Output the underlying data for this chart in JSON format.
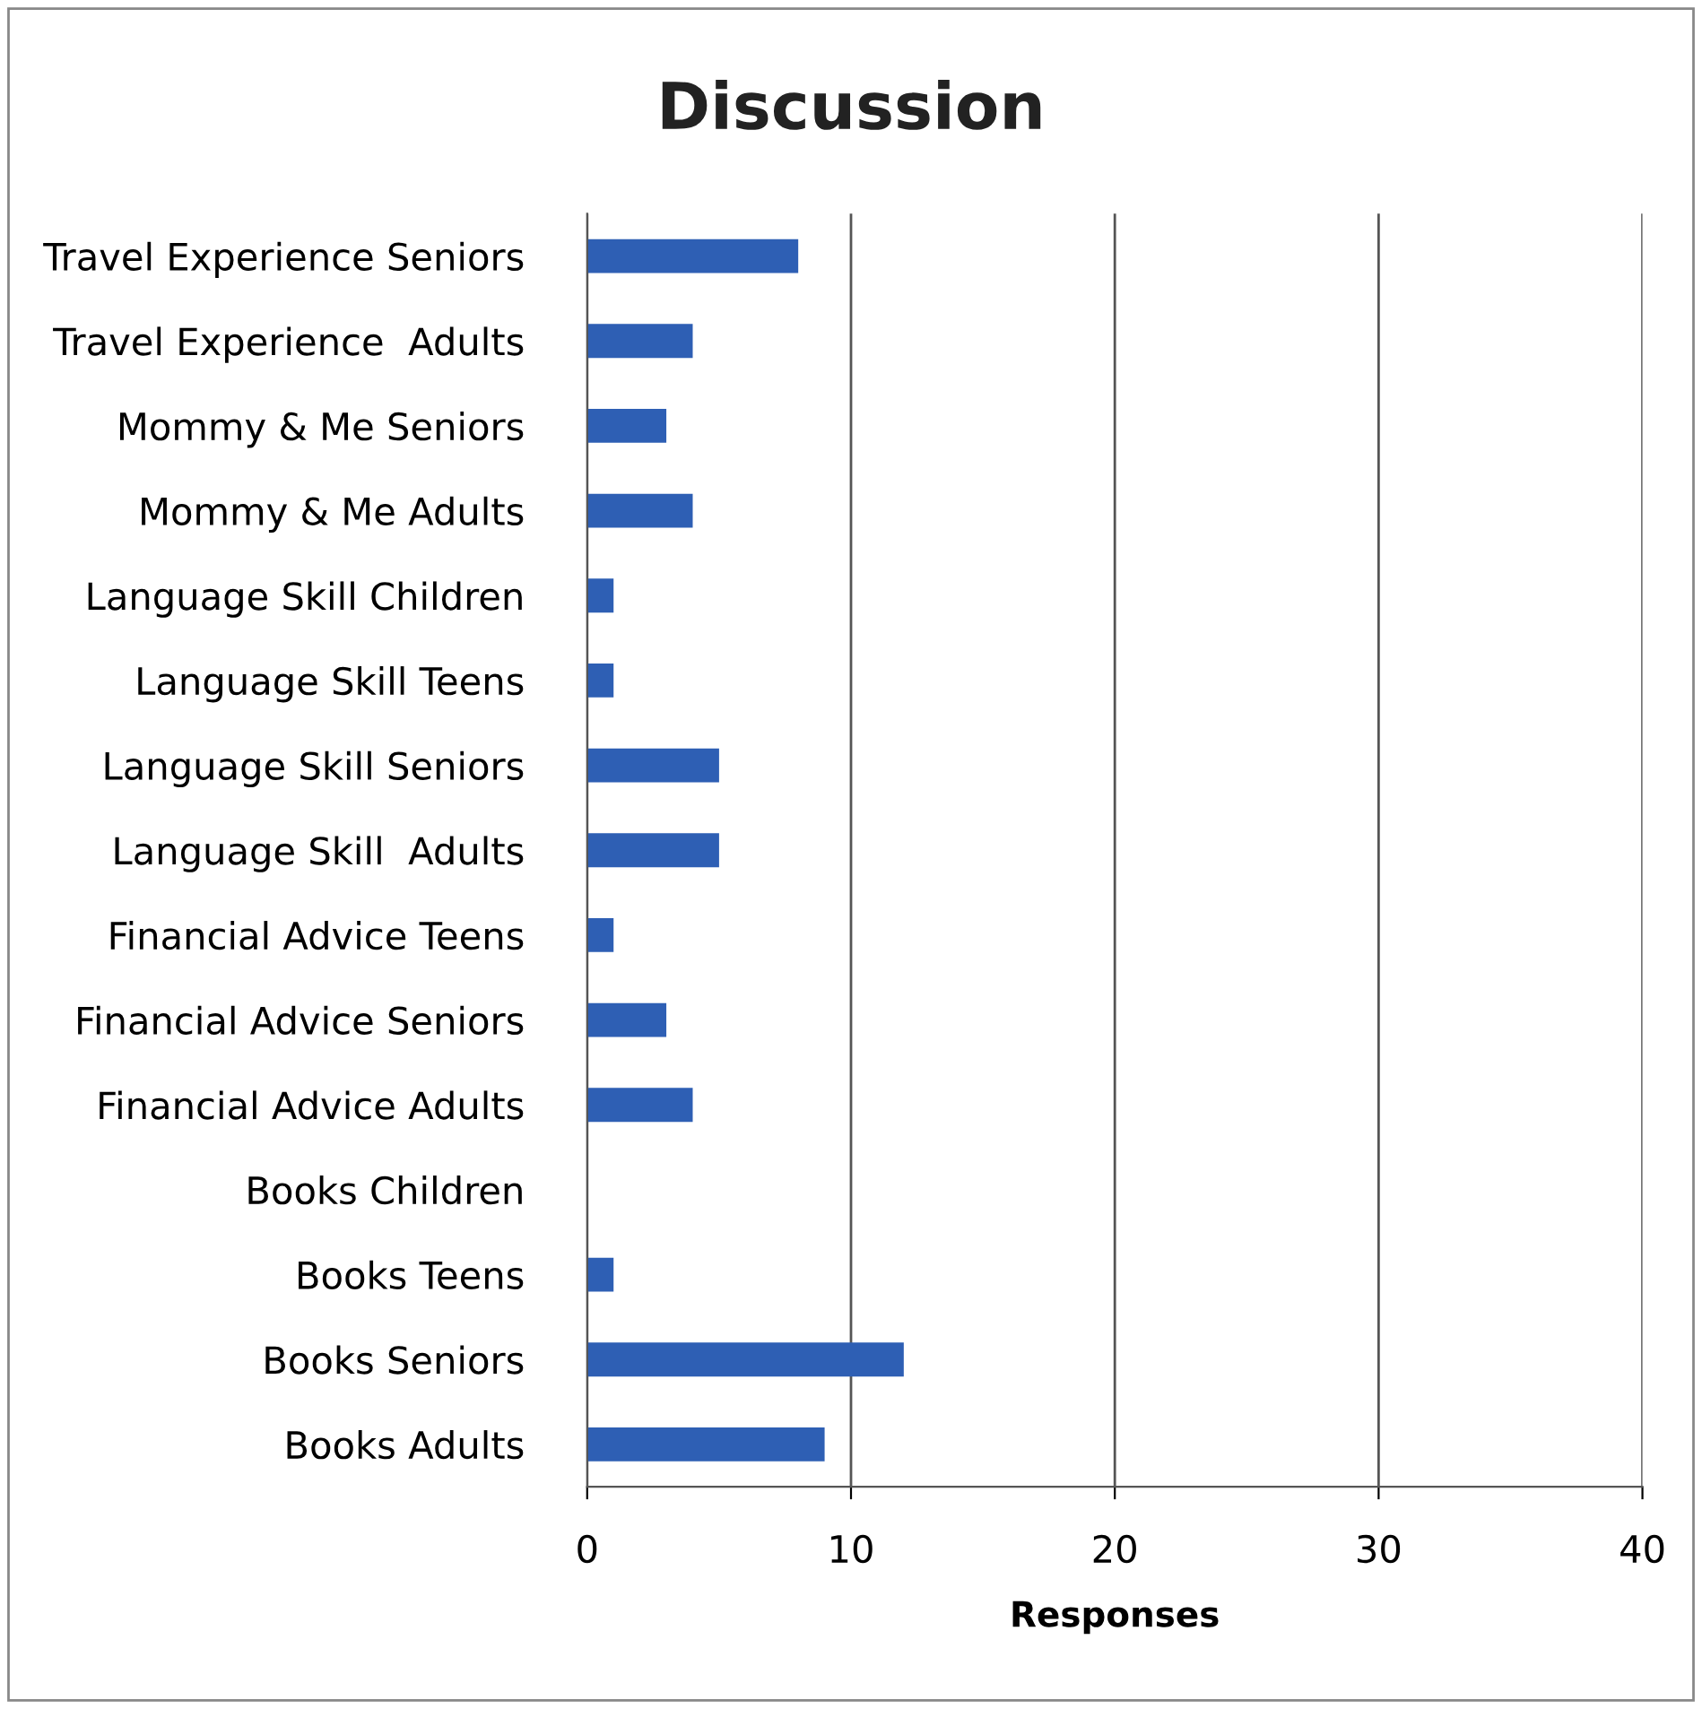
{
  "chart_data": {
    "type": "bar",
    "orientation": "horizontal",
    "title": "Discussion",
    "xlabel": "Responses",
    "categories": [
      "Travel Experience Seniors",
      "Travel Experience  Adults",
      "Mommy & Me Seniors",
      "Mommy & Me Adults",
      "Language Skill Children",
      "Language Skill Teens",
      "Language Skill Seniors",
      "Language Skill  Adults",
      "Financial Advice Teens",
      "Financial Advice Seniors",
      "Financial Advice Adults",
      "Books Children",
      "Books Teens",
      "Books Seniors",
      "Books Adults"
    ],
    "values": [
      8,
      4,
      3,
      4,
      1,
      1,
      5,
      5,
      1,
      3,
      4,
      0,
      1,
      12,
      9
    ],
    "color": "#2e5fb4",
    "xlim": [
      0,
      40
    ],
    "xticks": [
      0,
      10,
      20,
      30,
      40
    ],
    "grid": "x",
    "legend": false
  }
}
